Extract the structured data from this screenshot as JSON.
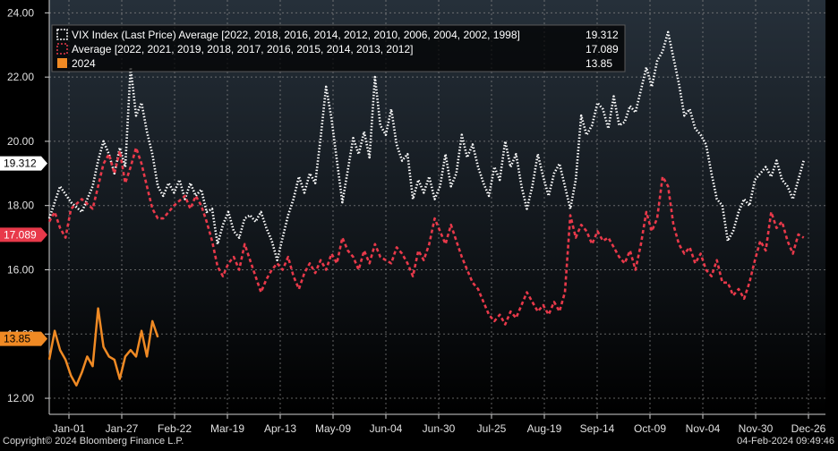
{
  "chart_data": {
    "type": "line",
    "title": "",
    "xlabel": "",
    "ylabel": "",
    "ylim": [
      11.5,
      24.4
    ],
    "y_ticks": [
      12,
      14,
      16,
      18,
      20,
      22,
      24
    ],
    "y_tick_labels": [
      "12.00",
      "14.00",
      "16.00",
      "18.00",
      "20.00",
      "22.00",
      "24.00"
    ],
    "x_tick_labels": [
      "Jan-01",
      "Jan-27",
      "Feb-22",
      "Mar-19",
      "Apr-13",
      "May-09",
      "Jun-04",
      "Jun-30",
      "Jul-25",
      "Aug-19",
      "Sep-14",
      "Oct-09",
      "Nov-04",
      "Nov-30",
      "Dec-26"
    ],
    "grid": true,
    "legend_position": "top-left",
    "x_unit": "trading day",
    "series": [
      {
        "name": "VIX Index (Last Price) Average [2022, 2018, 2016, 2014, 2012, 2010, 2006, 2004, 2002, 1998]",
        "last_value": "19.312",
        "color": "#ffffff",
        "style": "dotted",
        "points": [
          [
            1,
            17.6
          ],
          [
            3,
            18.6
          ],
          [
            5,
            18.1
          ],
          [
            7,
            17.8
          ],
          [
            9,
            18.6
          ],
          [
            10,
            19.4
          ],
          [
            11,
            20.0
          ],
          [
            12,
            19.6
          ],
          [
            13,
            19.0
          ],
          [
            14,
            19.8
          ],
          [
            15,
            19.2
          ],
          [
            16,
            22.3
          ],
          [
            17,
            20.8
          ],
          [
            18,
            21.2
          ],
          [
            19,
            20.3
          ],
          [
            20,
            19.6
          ],
          [
            21,
            18.6
          ],
          [
            22,
            18.3
          ],
          [
            23,
            18.7
          ],
          [
            24,
            18.4
          ],
          [
            25,
            18.8
          ],
          [
            26,
            18.2
          ],
          [
            27,
            18.7
          ],
          [
            28,
            18.3
          ],
          [
            29,
            18.5
          ],
          [
            30,
            17.8
          ],
          [
            31,
            17.9
          ],
          [
            32,
            16.8
          ],
          [
            33,
            17.4
          ],
          [
            34,
            17.8
          ],
          [
            35,
            17.2
          ],
          [
            36,
            17.0
          ],
          [
            37,
            17.6
          ],
          [
            38,
            17.7
          ],
          [
            39,
            17.5
          ],
          [
            40,
            17.8
          ],
          [
            41,
            17.3
          ],
          [
            42,
            16.9
          ],
          [
            43,
            16.3
          ],
          [
            44,
            17.0
          ],
          [
            45,
            17.7
          ],
          [
            46,
            18.2
          ],
          [
            47,
            18.9
          ],
          [
            48,
            18.4
          ],
          [
            49,
            19.0
          ],
          [
            50,
            18.7
          ],
          [
            51,
            20.1
          ],
          [
            52,
            21.7
          ],
          [
            53,
            20.7
          ],
          [
            54,
            19.4
          ],
          [
            55,
            18.1
          ],
          [
            56,
            19.1
          ],
          [
            57,
            20.1
          ],
          [
            58,
            19.6
          ],
          [
            59,
            20.3
          ],
          [
            60,
            19.5
          ],
          [
            61,
            22.0
          ],
          [
            62,
            20.5
          ],
          [
            63,
            20.2
          ],
          [
            64,
            21.0
          ],
          [
            65,
            19.9
          ],
          [
            66,
            19.4
          ],
          [
            67,
            19.6
          ],
          [
            68,
            18.2
          ],
          [
            69,
            18.8
          ],
          [
            70,
            18.4
          ],
          [
            71,
            18.9
          ],
          [
            72,
            18.2
          ],
          [
            73,
            18.6
          ],
          [
            74,
            19.6
          ],
          [
            75,
            18.6
          ],
          [
            76,
            19.0
          ],
          [
            77,
            20.2
          ],
          [
            78,
            19.5
          ],
          [
            79,
            19.9
          ],
          [
            80,
            19.2
          ],
          [
            81,
            18.7
          ],
          [
            82,
            18.3
          ],
          [
            83,
            19.2
          ],
          [
            84,
            18.8
          ],
          [
            85,
            20.0
          ],
          [
            86,
            19.2
          ],
          [
            87,
            19.6
          ],
          [
            88,
            18.6
          ],
          [
            89,
            17.9
          ],
          [
            90,
            18.6
          ],
          [
            91,
            19.6
          ],
          [
            92,
            18.9
          ],
          [
            93,
            18.3
          ],
          [
            94,
            19.0
          ],
          [
            95,
            19.3
          ],
          [
            96,
            18.6
          ],
          [
            97,
            17.9
          ],
          [
            98,
            18.8
          ],
          [
            99,
            20.8
          ],
          [
            100,
            20.2
          ],
          [
            101,
            20.5
          ],
          [
            102,
            21.2
          ],
          [
            103,
            21.0
          ],
          [
            104,
            20.4
          ],
          [
            105,
            21.4
          ],
          [
            106,
            20.5
          ],
          [
            107,
            20.6
          ],
          [
            108,
            21.1
          ],
          [
            109,
            20.9
          ],
          [
            110,
            21.6
          ],
          [
            111,
            22.3
          ],
          [
            112,
            21.7
          ],
          [
            113,
            22.5
          ],
          [
            114,
            22.8
          ],
          [
            115,
            23.4
          ],
          [
            116,
            22.6
          ],
          [
            117,
            21.8
          ],
          [
            118,
            20.8
          ],
          [
            119,
            21.0
          ],
          [
            120,
            20.4
          ],
          [
            121,
            20.2
          ],
          [
            122,
            19.9
          ],
          [
            123,
            19.0
          ],
          [
            124,
            18.2
          ],
          [
            125,
            18.0
          ],
          [
            126,
            16.9
          ],
          [
            127,
            17.2
          ],
          [
            128,
            17.8
          ],
          [
            129,
            18.2
          ],
          [
            130,
            18.0
          ],
          [
            131,
            18.8
          ],
          [
            132,
            19.0
          ],
          [
            133,
            19.2
          ],
          [
            134,
            18.9
          ],
          [
            135,
            19.4
          ],
          [
            136,
            18.8
          ],
          [
            137,
            18.6
          ],
          [
            138,
            18.2
          ],
          [
            139,
            18.8
          ],
          [
            140,
            19.4
          ]
        ]
      },
      {
        "name": "Average  [2022, 2021, 2019, 2018, 2017, 2016, 2015, 2014, 2013, 2012]",
        "last_value": "17.089",
        "color": "#e8394a",
        "style": "dashed",
        "points": [
          [
            1,
            17.5
          ],
          [
            2,
            17.8
          ],
          [
            3,
            17.3
          ],
          [
            4,
            17.0
          ],
          [
            5,
            17.9
          ],
          [
            7,
            18.2
          ],
          [
            9,
            17.9
          ],
          [
            10,
            18.6
          ],
          [
            11,
            19.3
          ],
          [
            12,
            19.6
          ],
          [
            13,
            19.0
          ],
          [
            14,
            19.7
          ],
          [
            15,
            18.7
          ],
          [
            16,
            19.2
          ],
          [
            17,
            19.8
          ],
          [
            18,
            19.3
          ],
          [
            19,
            18.6
          ],
          [
            20,
            17.9
          ],
          [
            21,
            17.6
          ],
          [
            22,
            17.6
          ],
          [
            24,
            18.0
          ],
          [
            26,
            18.3
          ],
          [
            27,
            17.9
          ],
          [
            28,
            18.3
          ],
          [
            29,
            18.0
          ],
          [
            30,
            17.5
          ],
          [
            31,
            16.9
          ],
          [
            32,
            16.1
          ],
          [
            33,
            15.8
          ],
          [
            34,
            16.2
          ],
          [
            35,
            16.4
          ],
          [
            36,
            16.0
          ],
          [
            37,
            16.8
          ],
          [
            38,
            16.3
          ],
          [
            39,
            15.8
          ],
          [
            40,
            15.3
          ],
          [
            41,
            15.7
          ],
          [
            42,
            16.0
          ],
          [
            43,
            16.2
          ],
          [
            44,
            16.0
          ],
          [
            45,
            16.4
          ],
          [
            46,
            15.8
          ],
          [
            47,
            15.4
          ],
          [
            48,
            15.9
          ],
          [
            49,
            16.2
          ],
          [
            50,
            15.9
          ],
          [
            51,
            16.3
          ],
          [
            52,
            16.0
          ],
          [
            53,
            16.5
          ],
          [
            54,
            16.2
          ],
          [
            55,
            17.0
          ],
          [
            56,
            16.6
          ],
          [
            57,
            16.4
          ],
          [
            58,
            16.0
          ],
          [
            59,
            16.6
          ],
          [
            60,
            16.2
          ],
          [
            61,
            16.8
          ],
          [
            62,
            16.4
          ],
          [
            63,
            16.3
          ],
          [
            64,
            16.2
          ],
          [
            65,
            16.7
          ],
          [
            66,
            16.5
          ],
          [
            67,
            16.2
          ],
          [
            68,
            15.8
          ],
          [
            69,
            16.6
          ],
          [
            70,
            16.3
          ],
          [
            71,
            16.8
          ],
          [
            72,
            17.6
          ],
          [
            73,
            17.2
          ],
          [
            74,
            16.8
          ],
          [
            75,
            17.4
          ],
          [
            76,
            16.9
          ],
          [
            77,
            16.4
          ],
          [
            78,
            16.0
          ],
          [
            79,
            15.6
          ],
          [
            80,
            15.4
          ],
          [
            81,
            15.0
          ],
          [
            82,
            14.6
          ],
          [
            83,
            14.4
          ],
          [
            84,
            14.6
          ],
          [
            85,
            14.3
          ],
          [
            86,
            14.7
          ],
          [
            87,
            14.5
          ],
          [
            88,
            14.9
          ],
          [
            89,
            15.3
          ],
          [
            90,
            15.0
          ],
          [
            91,
            14.7
          ],
          [
            92,
            14.9
          ],
          [
            93,
            14.6
          ],
          [
            94,
            15.0
          ],
          [
            95,
            14.7
          ],
          [
            96,
            15.3
          ],
          [
            97,
            17.7
          ],
          [
            98,
            17.0
          ],
          [
            99,
            17.4
          ],
          [
            100,
            17.2
          ],
          [
            101,
            16.8
          ],
          [
            102,
            17.2
          ],
          [
            103,
            16.9
          ],
          [
            104,
            17.0
          ],
          [
            106,
            16.4
          ],
          [
            107,
            16.2
          ],
          [
            108,
            16.6
          ],
          [
            109,
            16.0
          ],
          [
            110,
            16.8
          ],
          [
            111,
            17.8
          ],
          [
            112,
            17.2
          ],
          [
            113,
            17.6
          ],
          [
            114,
            18.9
          ],
          [
            115,
            18.6
          ],
          [
            116,
            17.4
          ],
          [
            117,
            16.8
          ],
          [
            118,
            16.5
          ],
          [
            119,
            16.7
          ],
          [
            120,
            16.2
          ],
          [
            121,
            16.5
          ],
          [
            122,
            16.0
          ],
          [
            123,
            15.8
          ],
          [
            124,
            16.3
          ],
          [
            125,
            15.6
          ],
          [
            126,
            15.6
          ],
          [
            127,
            15.2
          ],
          [
            128,
            15.4
          ],
          [
            129,
            15.1
          ],
          [
            130,
            15.6
          ],
          [
            131,
            16.3
          ],
          [
            132,
            16.9
          ],
          [
            133,
            16.6
          ],
          [
            134,
            17.8
          ],
          [
            135,
            17.3
          ],
          [
            136,
            17.5
          ],
          [
            137,
            16.9
          ],
          [
            138,
            16.5
          ],
          [
            139,
            17.1
          ],
          [
            140,
            17.0
          ]
        ]
      },
      {
        "name": "2024",
        "last_value": "13.85",
        "color": "#f08a24",
        "style": "solid",
        "points": [
          [
            1,
            13.2
          ],
          [
            2,
            14.1
          ],
          [
            3,
            13.5
          ],
          [
            4,
            13.2
          ],
          [
            5,
            12.7
          ],
          [
            6,
            12.4
          ],
          [
            7,
            12.8
          ],
          [
            8,
            13.3
          ],
          [
            9,
            13.0
          ],
          [
            10,
            14.8
          ],
          [
            11,
            13.6
          ],
          [
            12,
            13.3
          ],
          [
            13,
            13.2
          ],
          [
            14,
            12.6
          ],
          [
            15,
            13.3
          ],
          [
            16,
            13.5
          ],
          [
            17,
            13.3
          ],
          [
            18,
            14.1
          ],
          [
            19,
            13.3
          ],
          [
            20,
            14.4
          ],
          [
            21,
            13.9
          ]
        ]
      }
    ]
  },
  "footer": {
    "copyright": "Copyright© 2024 Bloomberg Finance L.P.",
    "timestamp": "04-Feb-2024 09:49:46"
  }
}
